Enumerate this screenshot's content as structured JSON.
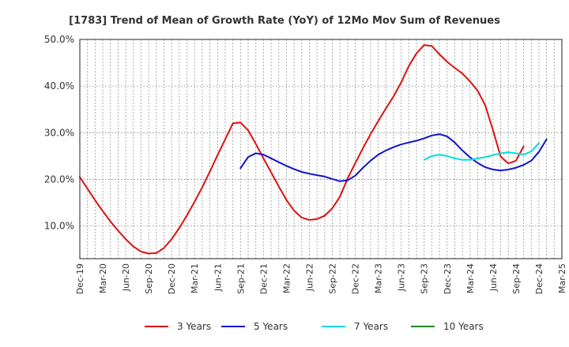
{
  "chart_data": {
    "type": "line",
    "title": "[1783]  Trend of Mean of Growth Rate (YoY) of 12Mo Mov Sum of Revenues",
    "xlabel": "",
    "ylabel": "",
    "ylim": [
      3.0,
      50.0
    ],
    "yticks": [
      10,
      20,
      30,
      40,
      50
    ],
    "ytick_labels": [
      "10.0%",
      "20.0%",
      "30.0%",
      "40.0%",
      "50.0%"
    ],
    "x_months": 63,
    "x_ticks": [
      {
        "m": 0,
        "label": "Dec-19"
      },
      {
        "m": 3,
        "label": "Mar-20"
      },
      {
        "m": 6,
        "label": "Jun-20"
      },
      {
        "m": 9,
        "label": "Sep-20"
      },
      {
        "m": 12,
        "label": "Dec-20"
      },
      {
        "m": 15,
        "label": "Mar-21"
      },
      {
        "m": 18,
        "label": "Jun-21"
      },
      {
        "m": 21,
        "label": "Sep-21"
      },
      {
        "m": 24,
        "label": "Dec-21"
      },
      {
        "m": 27,
        "label": "Mar-22"
      },
      {
        "m": 30,
        "label": "Jun-22"
      },
      {
        "m": 33,
        "label": "Sep-22"
      },
      {
        "m": 36,
        "label": "Dec-22"
      },
      {
        "m": 39,
        "label": "Mar-23"
      },
      {
        "m": 42,
        "label": "Jun-23"
      },
      {
        "m": 45,
        "label": "Sep-23"
      },
      {
        "m": 48,
        "label": "Dec-23"
      },
      {
        "m": 51,
        "label": "Mar-24"
      },
      {
        "m": 54,
        "label": "Jun-24"
      },
      {
        "m": 57,
        "label": "Sep-24"
      },
      {
        "m": 60,
        "label": "Dec-24"
      },
      {
        "m": 63,
        "label": "Mar-25"
      }
    ],
    "series": [
      {
        "name": "3 Years",
        "color": "#dd1111",
        "start_month": 0,
        "values": [
          20.5,
          18.0,
          15.5,
          13.2,
          11.0,
          9.0,
          7.2,
          5.6,
          4.5,
          4.1,
          4.2,
          5.3,
          7.2,
          9.6,
          12.3,
          15.2,
          18.3,
          21.7,
          25.2,
          28.6,
          32.0,
          32.2,
          30.5,
          27.6,
          24.5,
          21.5,
          18.5,
          15.6,
          13.3,
          11.8,
          11.3,
          11.5,
          12.2,
          13.8,
          16.3,
          20.2,
          23.5,
          26.7,
          29.7,
          32.5,
          35.2,
          37.8,
          40.8,
          44.3,
          47.0,
          48.8,
          48.6,
          46.8,
          45.2,
          43.9,
          42.7,
          41.0,
          39.0,
          35.8,
          30.5,
          24.9,
          23.4,
          24.0,
          27.1
        ]
      },
      {
        "name": "5 Years",
        "color": "#1111cc",
        "start_month": 21,
        "values": [
          22.4,
          24.8,
          25.6,
          25.3,
          24.5,
          23.7,
          22.9,
          22.2,
          21.6,
          21.2,
          20.9,
          20.6,
          20.1,
          19.6,
          19.8,
          20.8,
          22.5,
          24.0,
          25.3,
          26.2,
          26.9,
          27.5,
          27.9,
          28.3,
          28.8,
          29.4,
          29.7,
          29.2,
          27.9,
          26.2,
          24.7,
          23.5,
          22.6,
          22.1,
          21.9,
          22.1,
          22.5,
          23.1,
          24.0,
          25.9,
          28.6
        ]
      },
      {
        "name": "7 Years",
        "color": "#00dddd",
        "start_month": 45,
        "values": [
          24.2,
          25.0,
          25.3,
          25.0,
          24.5,
          24.2,
          24.2,
          24.5,
          24.8,
          25.2,
          25.6,
          25.8,
          25.6,
          25.3,
          26.0,
          27.8
        ]
      },
      {
        "name": "10 Years",
        "color": "#228822",
        "start_month": 0,
        "values": []
      }
    ],
    "legend_position": "bottom",
    "grid": true
  }
}
